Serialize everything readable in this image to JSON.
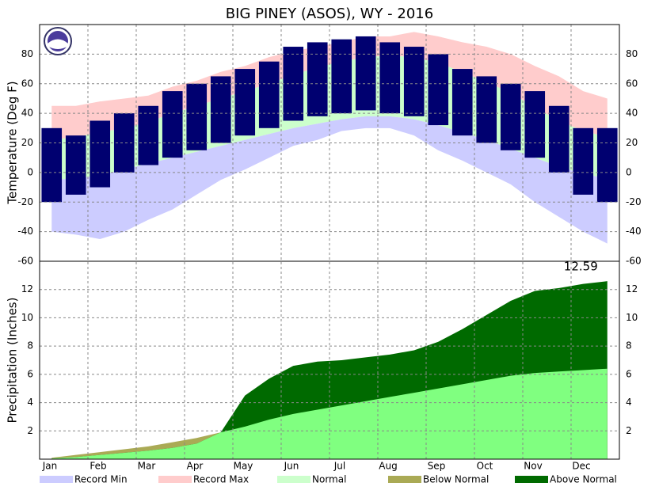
{
  "chart_data": [
    {
      "type": "temperature-range",
      "title": "BIG PINEY (ASOS), WY - 2016",
      "y_label": "Temperature (Deg F)",
      "categories": [
        "Jan",
        null,
        "Feb",
        null,
        "Mar",
        null,
        "Apr",
        null,
        "May",
        null,
        "Jun",
        null,
        "Jul",
        null,
        "Aug",
        null,
        "Sep",
        null,
        "Oct",
        null,
        "Nov",
        null,
        "Dec",
        null
      ],
      "ylim": [
        -60,
        100
      ],
      "yticks": [
        -60,
        -40,
        -20,
        0,
        20,
        40,
        60,
        80
      ],
      "grid": true,
      "series": [
        {
          "name": "Record Min",
          "color": "#ccccff",
          "values": [
            -40,
            -42,
            -45,
            -40,
            -32,
            -25,
            -15,
            -5,
            2,
            10,
            18,
            22,
            28,
            30,
            30,
            25,
            15,
            8,
            0,
            -8,
            -20,
            -30,
            -40,
            -48
          ]
        },
        {
          "name": "Record Max",
          "color": "#ffcccc",
          "values": [
            45,
            45,
            48,
            50,
            52,
            58,
            62,
            68,
            72,
            78,
            82,
            85,
            88,
            92,
            92,
            95,
            92,
            88,
            85,
            80,
            72,
            65,
            55,
            50
          ]
        },
        {
          "name": "Normal",
          "color": "#ccffcc",
          "low": [
            -5,
            -4,
            -2,
            2,
            6,
            10,
            14,
            18,
            22,
            26,
            30,
            33,
            36,
            38,
            38,
            36,
            32,
            27,
            22,
            16,
            10,
            4,
            -1,
            -4
          ],
          "high": [
            22,
            24,
            27,
            30,
            34,
            40,
            45,
            50,
            55,
            60,
            66,
            71,
            75,
            78,
            79,
            78,
            74,
            68,
            61,
            54,
            44,
            35,
            28,
            24
          ]
        },
        {
          "color": "#000070",
          "low": [
            -20,
            -15,
            -10,
            0,
            5,
            10,
            15,
            20,
            25,
            30,
            35,
            38,
            40,
            42,
            40,
            38,
            32,
            25,
            20,
            15,
            10,
            0,
            -15,
            -20
          ],
          "high": [
            30,
            25,
            35,
            40,
            45,
            55,
            60,
            65,
            70,
            75,
            85,
            88,
            90,
            92,
            88,
            85,
            80,
            70,
            65,
            60,
            55,
            45,
            30,
            30
          ]
        }
      ]
    },
    {
      "type": "cumulative-precip",
      "y_label": "Precipitation (Inches)",
      "ylim": [
        0,
        14
      ],
      "yticks": [
        2,
        4,
        6,
        8,
        10,
        12
      ],
      "grid": true,
      "normal_color": "#80ff80",
      "normal": [
        0.1,
        0.3,
        0.5,
        0.7,
        0.9,
        1.2,
        1.5,
        1.9,
        2.3,
        2.8,
        3.2,
        3.5,
        3.8,
        4.1,
        4.4,
        4.7,
        5.0,
        5.3,
        5.6,
        5.9,
        6.1,
        6.2,
        6.3,
        6.4
      ],
      "observed": [
        0.05,
        0.15,
        0.3,
        0.45,
        0.6,
        0.8,
        1.1,
        1.9,
        4.5,
        5.7,
        6.6,
        6.9,
        7.0,
        7.2,
        7.4,
        7.7,
        8.3,
        9.2,
        10.2,
        11.2,
        11.9,
        12.1,
        12.4,
        12.59
      ],
      "series": [
        {
          "name": "Below Normal",
          "color": "#aaaa55"
        },
        {
          "name": "Above Normal",
          "color": "#006a00"
        }
      ]
    }
  ]
}
